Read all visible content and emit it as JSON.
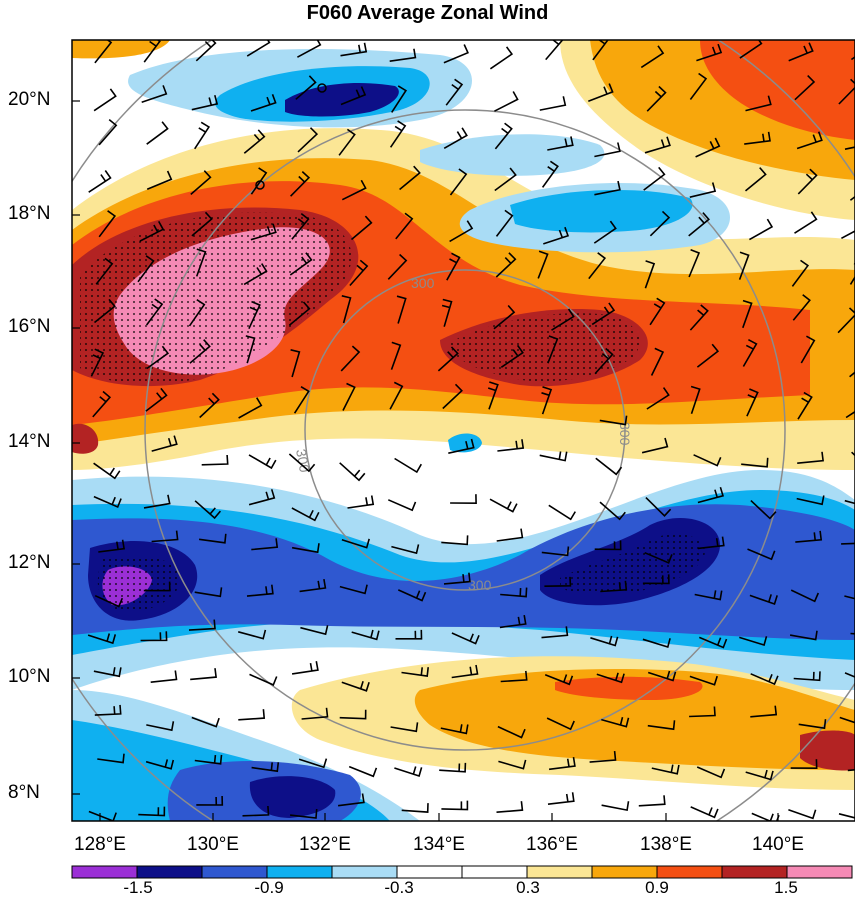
{
  "title": "F060 Average Zonal Wind",
  "lat_labels": [
    "20°N",
    "18°N",
    "16°N",
    "14°N",
    "12°N",
    "10°N",
    "8°N"
  ],
  "lon_labels": [
    "128°E",
    "130°E",
    "132°E",
    "134°E",
    "136°E",
    "138°E",
    "140°E"
  ],
  "colorbar": {
    "colors": [
      "#9b2fd6",
      "#0d0f88",
      "#2f58d0",
      "#0fb0f0",
      "#a9dcf5",
      "#ffffff",
      "#ffffff",
      "#fbe695",
      "#f8a70c",
      "#f44f12",
      "#b32323",
      "#f58ab5"
    ],
    "labels": [
      "-1.5",
      "-0.9",
      "-0.3",
      "0.3",
      "0.9",
      "1.5"
    ]
  },
  "range_rings": {
    "label": "300",
    "color": "#8c8c8c"
  }
}
